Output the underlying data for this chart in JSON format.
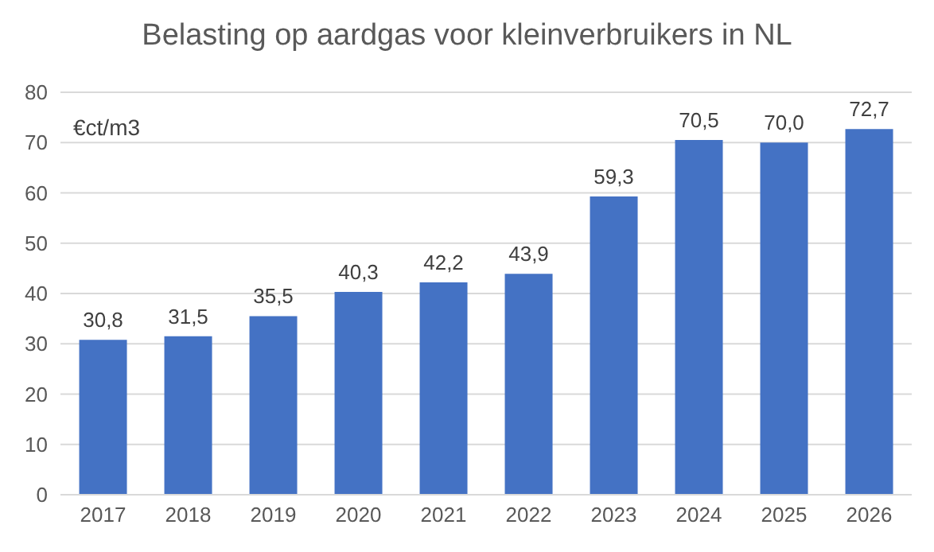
{
  "chart_data": {
    "type": "bar",
    "title": "Belasting op aardgas voor kleinverbruikers in NL",
    "ylabel": "€ct/m3",
    "categories": [
      "2017",
      "2018",
      "2019",
      "2020",
      "2021",
      "2022",
      "2023",
      "2024",
      "2025",
      "2026"
    ],
    "values": [
      30.8,
      31.5,
      35.5,
      40.3,
      42.2,
      43.9,
      59.3,
      70.5,
      70.0,
      72.7
    ],
    "color": "#4472c4",
    "ylim": [
      0,
      80
    ],
    "yticks": [
      0,
      10,
      20,
      30,
      40,
      50,
      60,
      70,
      80
    ],
    "value_labels": [
      "30,8",
      "31,5",
      "35,5",
      "40,3",
      "42,2",
      "43,9",
      "59,3",
      "70,5",
      "70,0",
      "72,7"
    ],
    "grid": "y"
  }
}
